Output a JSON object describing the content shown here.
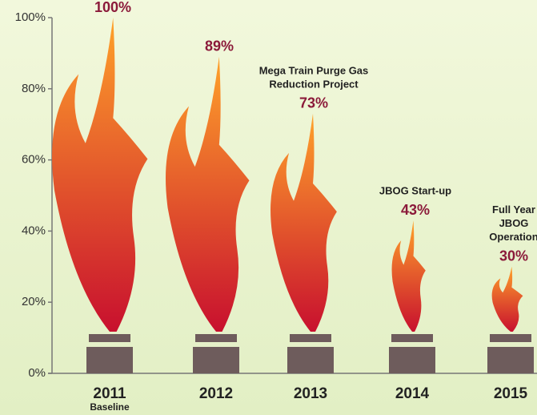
{
  "chart_data": {
    "type": "flame",
    "categories": [
      "2011",
      "2012",
      "2013",
      "2014",
      "2015"
    ],
    "category_notes": [
      "Baseline",
      null,
      null,
      null,
      null
    ],
    "values": [
      100,
      89,
      73,
      43,
      30
    ],
    "value_labels": [
      "100%",
      "89%",
      "73%",
      "43%",
      "30%"
    ],
    "annotations": [
      null,
      null,
      [
        "Mega Train Purge Gas",
        "Reduction Project"
      ],
      [
        "JBOG Start-up"
      ],
      [
        "Full Year",
        "JBOG",
        "Operation"
      ]
    ],
    "ylim": [
      0,
      100
    ],
    "yticks": [
      {
        "value": 0,
        "label": "0%"
      },
      {
        "value": 20,
        "label": "20%"
      },
      {
        "value": 40,
        "label": "40%"
      },
      {
        "value": 60,
        "label": "60%"
      },
      {
        "value": 80,
        "label": "80%"
      },
      {
        "value": 100,
        "label": "100%"
      }
    ],
    "colors": {
      "flame_base": "#c8102e",
      "flame_tip": "#ffa22a",
      "value_label": "#8b1a3a",
      "chimney": "#6e5c5c"
    }
  }
}
